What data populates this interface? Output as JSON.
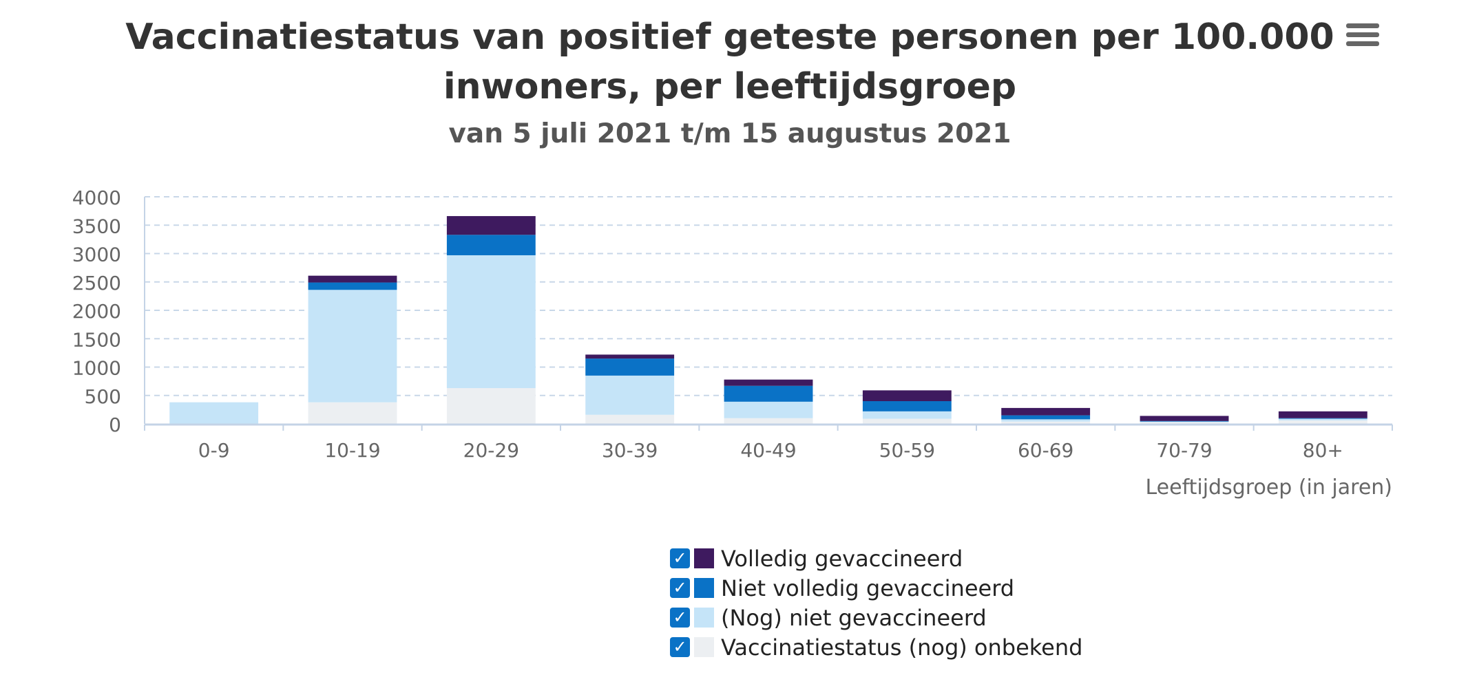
{
  "title": "Vaccinatiestatus van positief geteste personen per 100.000 inwoners, per leeftijdsgroep",
  "subtitle": "van 5 juli 2021 t/m 15 augustus 2021",
  "menu_icon": "hamburger-menu-icon",
  "check_glyph": "✓",
  "colors": {
    "volledig": "#3e1a5f",
    "niet_volledig": "#0a72c6",
    "nog_niet": "#c5e4f8",
    "onbekend": "#eceff2",
    "grid": "#c8d7e8",
    "axis": "#c4d3e6",
    "checkbox": "#0a72c6"
  },
  "chart_data": {
    "type": "bar",
    "stacked": true,
    "title": "Vaccinatiestatus van positief geteste personen per 100.000 inwoners, per leeftijdsgroep",
    "subtitle": "van 5 juli 2021 t/m 15 augustus 2021",
    "xlabel": "Leeftijdsgroep (in jaren)",
    "ylabel": "",
    "ylim": [
      0,
      4000
    ],
    "yticks": [
      "0",
      "500",
      "1000",
      "1500",
      "2000",
      "2500",
      "3000",
      "3500",
      "4000"
    ],
    "grid": true,
    "legend_position": "bottom-center",
    "categories": [
      "0-9",
      "10-19",
      "20-29",
      "30-39",
      "40-49",
      "50-59",
      "60-69",
      "70-79",
      "80+"
    ],
    "series": [
      {
        "name": "Vaccinatiestatus (nog) onbekend",
        "color": "#eceff2",
        "values": [
          0,
          380,
          630,
          160,
          100,
          90,
          40,
          30,
          60
        ]
      },
      {
        "name": "(Nog) niet gevaccineerd",
        "color": "#c5e4f8",
        "values": [
          380,
          1980,
          2340,
          690,
          290,
          130,
          40,
          10,
          30
        ]
      },
      {
        "name": "Niet volledig gevaccineerd",
        "color": "#0a72c6",
        "values": [
          0,
          130,
          360,
          300,
          280,
          180,
          70,
          10,
          10
        ]
      },
      {
        "name": "Volledig gevaccineerd",
        "color": "#3e1a5f",
        "values": [
          0,
          120,
          330,
          70,
          110,
          190,
          130,
          90,
          120
        ]
      }
    ]
  },
  "legend": [
    {
      "label": "Volledig gevaccineerd",
      "color": "#3e1a5f",
      "checked": true
    },
    {
      "label": "Niet volledig gevaccineerd",
      "color": "#0a72c6",
      "checked": true
    },
    {
      "label": "(Nog) niet gevaccineerd",
      "color": "#c5e4f8",
      "checked": true
    },
    {
      "label": "Vaccinatiestatus (nog) onbekend",
      "color": "#eceff2",
      "checked": true
    }
  ]
}
